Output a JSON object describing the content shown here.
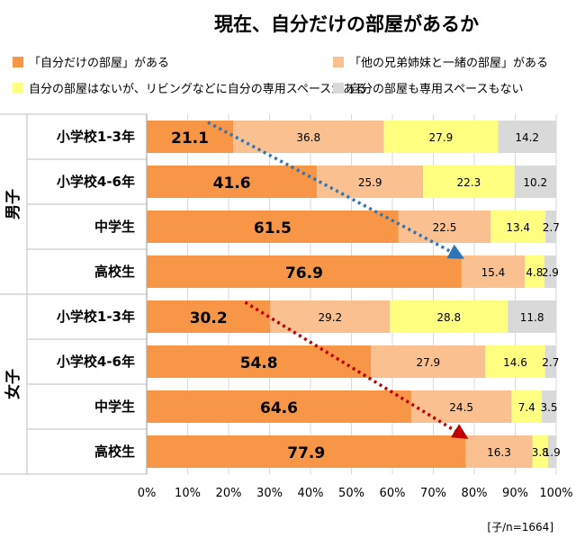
{
  "chart_data": {
    "type": "bar",
    "orientation": "horizontal",
    "stacked": true,
    "percent": true,
    "title": "現在、自分だけの部屋があるか",
    "groups": [
      {
        "label": "男子",
        "categories": [
          "小学校1-3年",
          "小学校4-6年",
          "中学生",
          "高校生"
        ]
      },
      {
        "label": "女子",
        "categories": [
          "小学校1-3年",
          "小学校4-6年",
          "中学生",
          "高校生"
        ]
      }
    ],
    "series": [
      {
        "name": "「自分だけの部屋」がある",
        "color": "#f79646",
        "values": [
          21.1,
          41.6,
          61.5,
          76.9,
          30.2,
          54.8,
          64.6,
          77.9
        ]
      },
      {
        "name": "「他の兄弟姉妹と一緒の部屋」がある",
        "color": "#fac090",
        "values": [
          36.8,
          25.9,
          22.5,
          15.4,
          29.2,
          27.9,
          24.5,
          16.3
        ]
      },
      {
        "name": "自分の部屋はないが、リビングなどに自分の専用スペースがある",
        "color": "#ffff80",
        "values": [
          27.9,
          22.3,
          13.4,
          4.8,
          28.8,
          14.6,
          7.4,
          3.8
        ]
      },
      {
        "name": "自分の部屋も専用スペースもない",
        "color": "#d9d9d9",
        "values": [
          14.2,
          10.2,
          2.7,
          2.9,
          11.8,
          2.7,
          3.5,
          1.9
        ]
      }
    ],
    "xlim": [
      0,
      100
    ],
    "xticks": [
      "0%",
      "10%",
      "20%",
      "30%",
      "40%",
      "50%",
      "60%",
      "70%",
      "80%",
      "90%",
      "100%"
    ],
    "legend_position": "top",
    "annotations": {
      "arrows": [
        {
          "group": "男子",
          "color": "#2e75b6"
        },
        {
          "group": "女子",
          "color": "#c00000"
        }
      ]
    },
    "note": "[子/n=1664]"
  }
}
